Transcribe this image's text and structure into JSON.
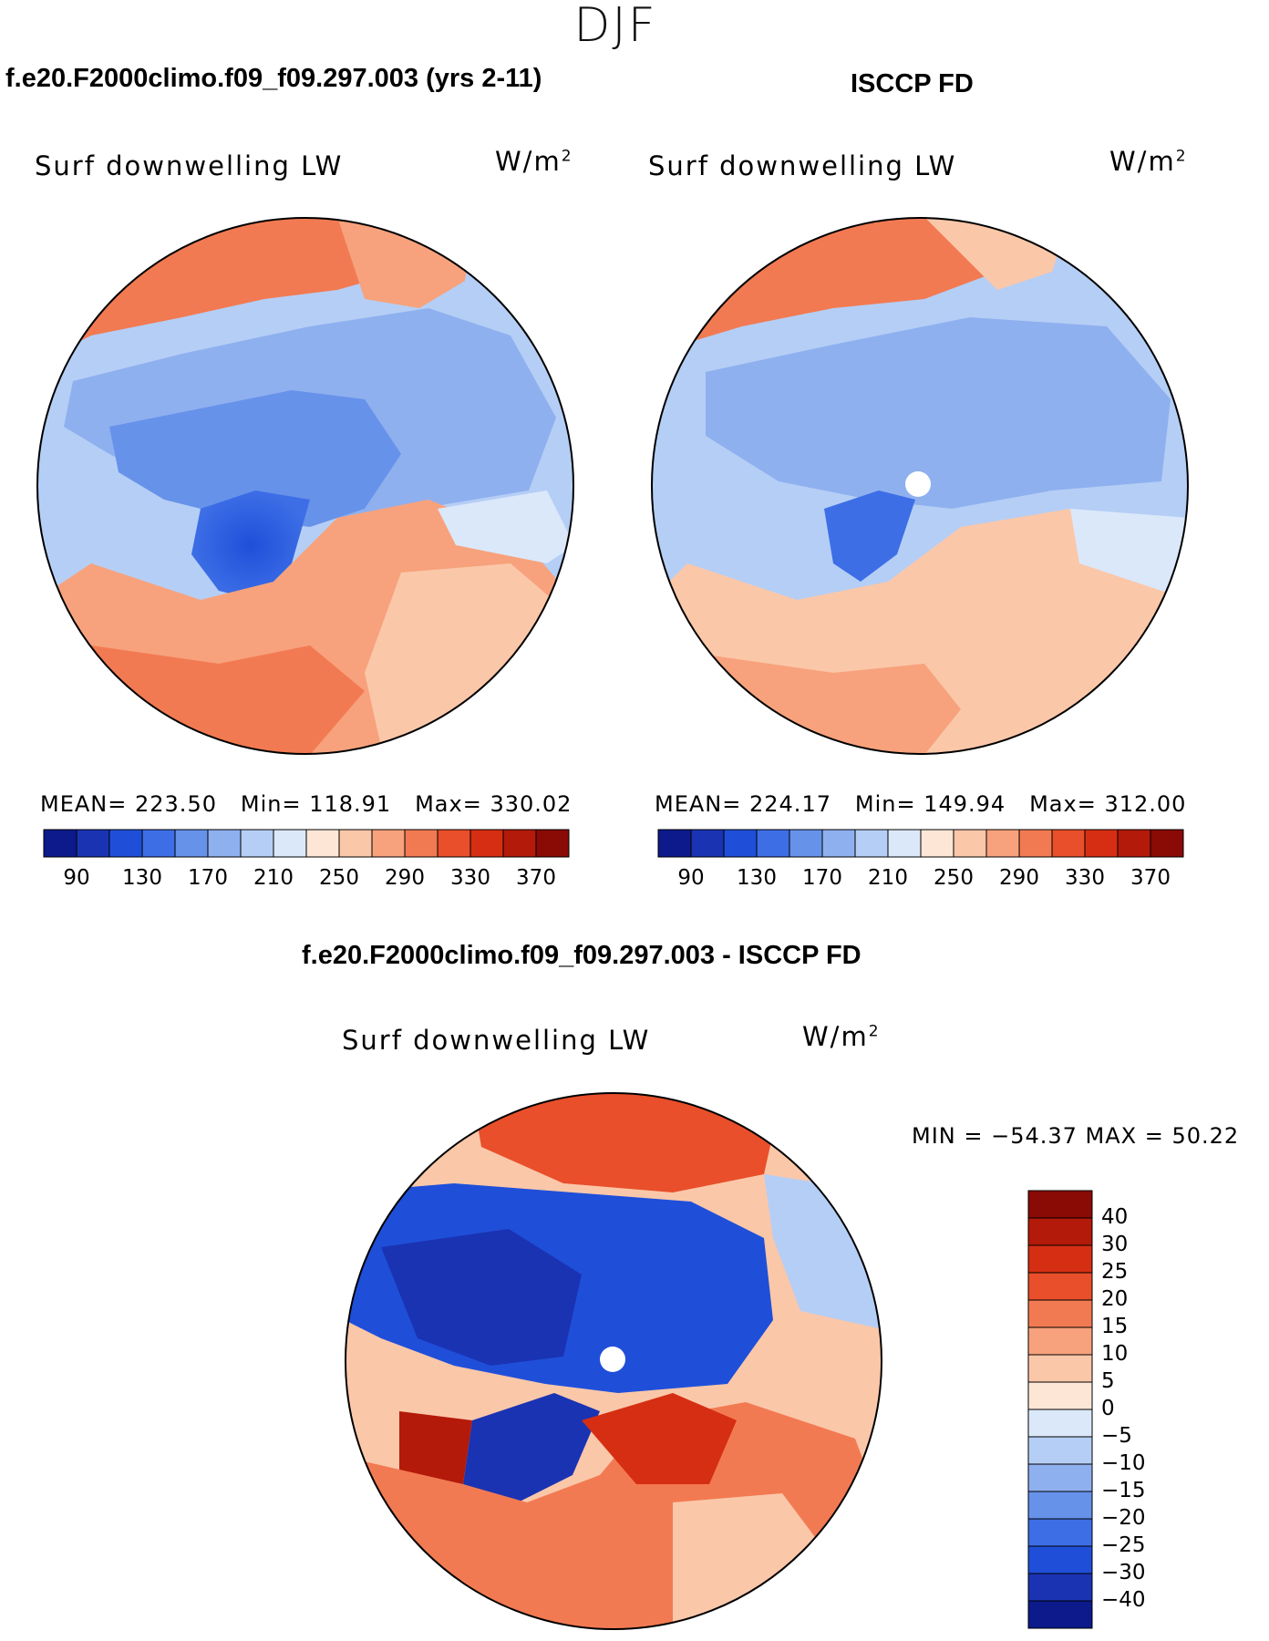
{
  "season": "DJF",
  "panels": {
    "model": {
      "title": "f.e20.F2000climo.f09_f09.297.003 (yrs 2-11)",
      "variable": "Surf downwelling LW",
      "units_base": "W/m",
      "units_exp": "2",
      "stats": {
        "mean_label": "MEAN=",
        "mean": "223.50",
        "min_label": "Min=",
        "min": "118.91",
        "max_label": "Max=",
        "max": "330.02"
      }
    },
    "obs": {
      "title": "ISCCP FD",
      "variable": "Surf downwelling LW",
      "units_base": "W/m",
      "units_exp": "2",
      "stats": {
        "mean_label": "MEAN=",
        "mean": "224.17",
        "min_label": "Min=",
        "min": "149.94",
        "max_label": "Max=",
        "max": "312.00"
      }
    },
    "diff": {
      "title": "f.e20.F2000climo.f09_f09.297.003 - ISCCP FD",
      "variable": "Surf downwelling LW",
      "units_base": "W/m",
      "units_exp": "2",
      "minmax": "MIN = −54.37 MAX =   50.22"
    }
  },
  "chart_data": [
    {
      "type": "heatmap",
      "projection": "north-polar-stereographic",
      "title": "f.e20.F2000climo.f09_f09.297.003 (yrs 2-11)",
      "variable": "Surf downwelling LW",
      "units": "W/m2",
      "mean": 223.5,
      "min": 118.91,
      "max": 330.02,
      "colorbar": {
        "ticks": [
          "90",
          "130",
          "170",
          "210",
          "250",
          "290",
          "330",
          "370"
        ],
        "colors": [
          "#0d1a8c",
          "#1a33b3",
          "#1f4fd9",
          "#3d6ee6",
          "#6692ea",
          "#8fb0ef",
          "#b5cef5",
          "#dbe8fa",
          "#fde6d6",
          "#fbc7a9",
          "#f7a27c",
          "#f27a52",
          "#e84f2a",
          "#d62e12",
          "#b31a0a",
          "#8a0a05"
        ]
      }
    },
    {
      "type": "heatmap",
      "projection": "north-polar-stereographic",
      "title": "ISCCP FD",
      "variable": "Surf downwelling LW",
      "units": "W/m2",
      "mean": 224.17,
      "min": 149.94,
      "max": 312.0,
      "colorbar": {
        "ticks": [
          "90",
          "130",
          "170",
          "210",
          "250",
          "290",
          "330",
          "370"
        ],
        "colors": [
          "#0d1a8c",
          "#1a33b3",
          "#1f4fd9",
          "#3d6ee6",
          "#6692ea",
          "#8fb0ef",
          "#b5cef5",
          "#dbe8fa",
          "#fde6d6",
          "#fbc7a9",
          "#f7a27c",
          "#f27a52",
          "#e84f2a",
          "#d62e12",
          "#b31a0a",
          "#8a0a05"
        ]
      }
    },
    {
      "type": "heatmap",
      "projection": "north-polar-stereographic",
      "title": "f.e20.F2000climo.f09_f09.297.003 - ISCCP FD",
      "variable": "Surf downwelling LW",
      "units": "W/m2",
      "min": -54.37,
      "max": 50.22,
      "colorbar": {
        "ticks": [
          "40",
          "30",
          "25",
          "20",
          "15",
          "10",
          "5",
          "0",
          "−5",
          "−10",
          "−15",
          "−20",
          "−25",
          "−30",
          "−40"
        ],
        "colors": [
          "#8a0a05",
          "#b31a0a",
          "#d62e12",
          "#e84f2a",
          "#f27a52",
          "#f7a27c",
          "#fbc7a9",
          "#fde6d6",
          "#dbe8fa",
          "#b5cef5",
          "#8fb0ef",
          "#6692ea",
          "#3d6ee6",
          "#1f4fd9",
          "#1a33b3",
          "#0d1a8c"
        ]
      }
    }
  ]
}
